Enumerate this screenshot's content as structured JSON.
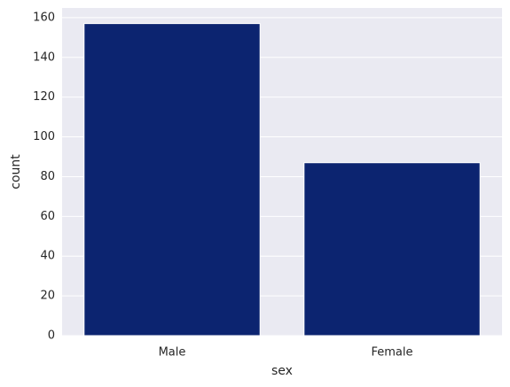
{
  "chart_data": {
    "type": "bar",
    "categories": [
      "Male",
      "Female"
    ],
    "values": [
      157,
      87
    ],
    "color": "#0c2470",
    "x_label": "sex",
    "y_label": "count",
    "ylim": [
      0,
      164.85
    ],
    "yticks": [
      0,
      20,
      40,
      60,
      80,
      100,
      120,
      140,
      160
    ],
    "grid": true
  }
}
